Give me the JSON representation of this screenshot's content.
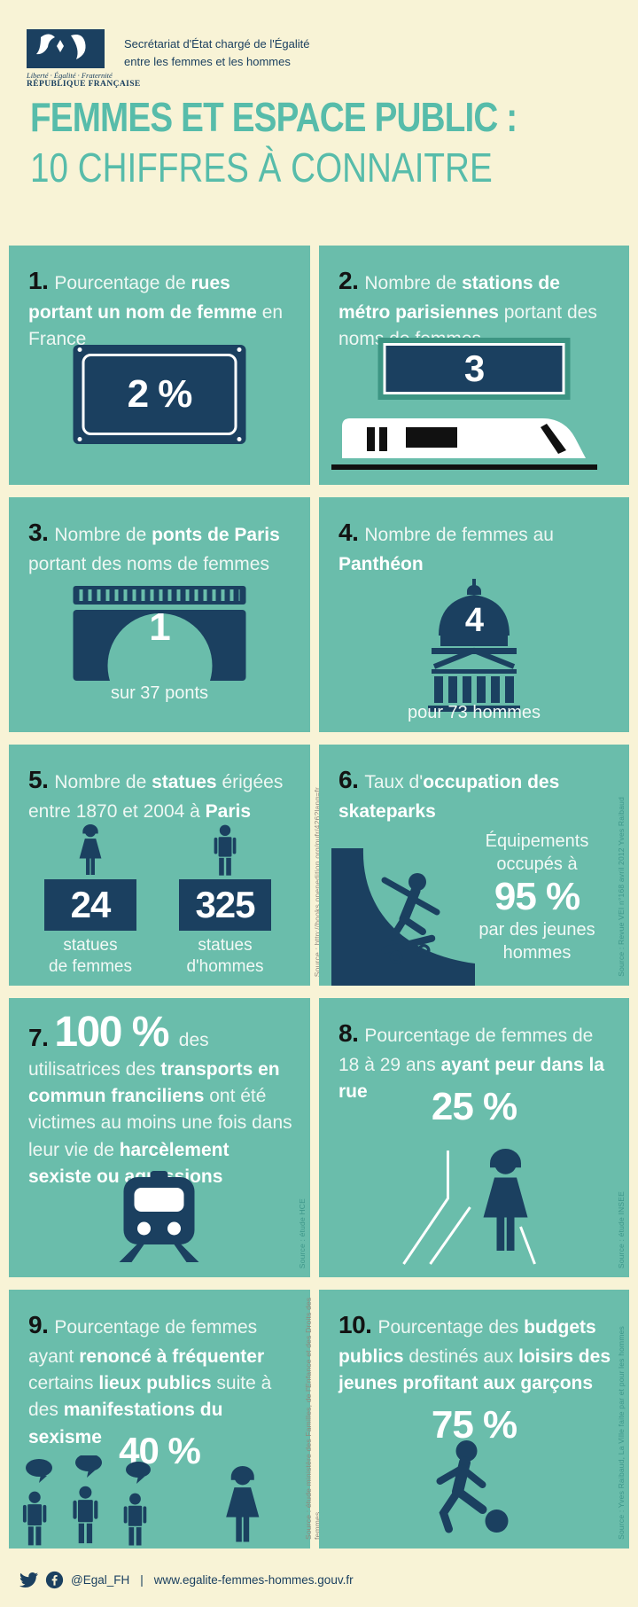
{
  "colors": {
    "background": "#f8f3d6",
    "card_teal": "#6abdab",
    "navy": "#1b4060",
    "title_teal": "#57bcaa",
    "metro_sign_border": "#3d9583",
    "number_black": "#131313",
    "source_on_card": "#3e978a",
    "source_on_background": "#8f897c"
  },
  "icons": {
    "logo": "republique-francaise-logo",
    "card1": "street-name-plaque",
    "card2": "metro-sign-and-train",
    "card3": "bridge",
    "card4": "pantheon-building",
    "card5": "woman-and-man-statues",
    "card6": "skateboarder-on-ramp",
    "card7": "train-front",
    "card8": "woman-walking-street",
    "card9": "men-with-speech-bubbles-and-woman",
    "card10": "boy-kicking-ball",
    "footer_social": [
      "twitter-bird-icon",
      "facebook-icon"
    ]
  },
  "header": {
    "logo_motto": "Liberté · Égalité · Fraternité",
    "logo_republic": "RÉPUBLIQUE FRANÇAISE",
    "ministry_line1": "Secrétariat d'État chargé de l'Égalité",
    "ministry_line2": "entre les femmes et les hommes"
  },
  "title": {
    "line1": "FEMMES ET ESPACE PUBLIC :",
    "line2": "10 CHIFFRES À CONNAITRE"
  },
  "cards": [
    {
      "number": "1.",
      "text": [
        {
          "t": "Pourcentage de ",
          "b": false
        },
        {
          "t": "rues portant un nom de femme",
          "b": true
        },
        {
          "t": " en France",
          "b": false
        }
      ],
      "stat": "2 %"
    },
    {
      "number": "2.",
      "text": [
        {
          "t": "Nombre de ",
          "b": false
        },
        {
          "t": "stations de métro parisiennes",
          "b": true
        },
        {
          "t": " portant des noms de femmes",
          "b": false
        }
      ],
      "stat": "3"
    },
    {
      "number": "3.",
      "text": [
        {
          "t": "Nombre de ",
          "b": false
        },
        {
          "t": "ponts de Paris",
          "b": true
        },
        {
          "t": " portant des noms de femmes",
          "b": false
        }
      ],
      "stat": "1",
      "sub": "sur 37 ponts"
    },
    {
      "number": "4.",
      "text": [
        {
          "t": "Nombre de femmes au ",
          "b": false
        },
        {
          "t": "Panthéon",
          "b": true
        }
      ],
      "stat": "4",
      "sub": "pour 73 hommes"
    },
    {
      "number": "5.",
      "text": [
        {
          "t": "Nombre de ",
          "b": false
        },
        {
          "t": "statues",
          "b": true
        },
        {
          "t": " érigées entre 1870 et 2004 à ",
          "b": false
        },
        {
          "t": "Paris",
          "b": true
        }
      ],
      "left_value": "24",
      "left_label1": "statues",
      "left_label2": "de femmes",
      "right_value": "325",
      "right_label1": "statues",
      "right_label2": "d'hommes",
      "source": "Source : http://books.openedition.org/pufr/426?lang=fr"
    },
    {
      "number": "6.",
      "text": [
        {
          "t": "Taux d'",
          "b": false
        },
        {
          "t": "occupation des skateparks",
          "b": true
        }
      ],
      "lead": "Équipements occupés à",
      "stat": "95 %",
      "tail": "par des jeunes hommes",
      "source": "Source : Revue VEI n°168 avril 2012 Yves Raibaud"
    },
    {
      "number": "7.",
      "stat": "100 %",
      "text": [
        {
          "t": " des utilisatrices des ",
          "b": false
        },
        {
          "t": "transports en commun franciliens",
          "b": true
        },
        {
          "t": " ont été victimes au moins une fois dans leur vie de ",
          "b": false
        },
        {
          "t": "harcèlement sexiste ou agressions",
          "b": true
        }
      ],
      "source": "Source : étude HCE"
    },
    {
      "number": "8.",
      "text": [
        {
          "t": "Pourcentage de femmes de 18 à 29 ans ",
          "b": false
        },
        {
          "t": "ayant peur dans la rue",
          "b": true
        }
      ],
      "stat": "25 %",
      "source": "Source : étude INSEE"
    },
    {
      "number": "9.",
      "text": [
        {
          "t": "Pourcentage de femmes ayant ",
          "b": false
        },
        {
          "t": "renoncé à fréquenter",
          "b": true
        },
        {
          "t": " certains ",
          "b": false
        },
        {
          "t": "lieux publics",
          "b": true
        },
        {
          "t": " suite à des ",
          "b": false
        },
        {
          "t": "manifestations du sexisme",
          "b": true
        }
      ],
      "stat": "40 %",
      "source": "Source : étude ministère des Familles, de l'Enfance et des Droits des femmes"
    },
    {
      "number": "10.",
      "text": [
        {
          "t": "Pourcentage des ",
          "b": false
        },
        {
          "t": "budgets publics",
          "b": true
        },
        {
          "t": " destinés aux ",
          "b": false
        },
        {
          "t": "loisirs des jeunes profitant aux garçons",
          "b": true
        }
      ],
      "stat": "75 %",
      "source": "Source : Yves Raibaud, La Ville faite par et pour les hommes"
    }
  ],
  "footer": {
    "handle": "@Egal_FH",
    "separator": "|",
    "url": "www.egalite-femmes-hommes.gouv.fr"
  }
}
